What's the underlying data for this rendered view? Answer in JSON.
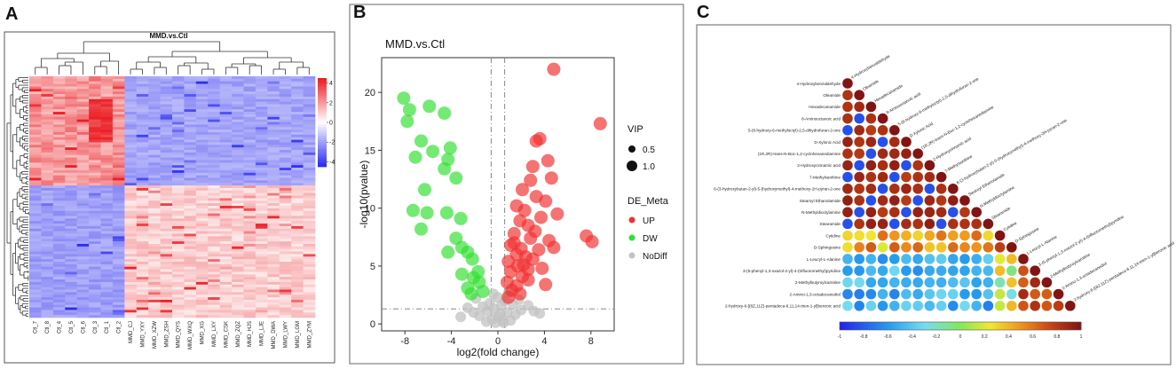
{
  "panels": {
    "a": {
      "letter": "A"
    },
    "b": {
      "letter": "B"
    },
    "c": {
      "letter": "C"
    }
  },
  "chart_data": [
    {
      "type": "heatmap",
      "title": "MMD.vs.Ctl",
      "columns": [
        "Ctl_7",
        "Ctl_8",
        "Ctl_4",
        "Ctl_5",
        "Ctl_6",
        "Ctl_3",
        "Ctl_1",
        "Ctl_2",
        "MMD_CJ",
        "MMD_YXY",
        "MMD_XZW",
        "MMD_ZSH",
        "MMD_QYS",
        "MMD_WXQ",
        "MMD_XG",
        "MMD_LXY",
        "MMD_CSK",
        "MMD_ZQZ",
        "MMD_HJS",
        "MMD_LJE",
        "MMD_DWA",
        "MMD_LWY",
        "MMD_LGM",
        "MMD_ZYM"
      ],
      "groups": [
        "Ctl",
        "MMD"
      ],
      "legend_ticks": [
        "4",
        "2",
        "0",
        "-2",
        "-4"
      ],
      "value_range": [
        -4.5,
        4.5
      ],
      "row_count": 95
    },
    {
      "type": "scatter",
      "title": "MMD.vs.Ctl",
      "xlabel": "log2(fold change)",
      "ylabel": "-log10(pvalue)",
      "xlim": [
        -10,
        10
      ],
      "ylim": [
        -0.6,
        23
      ],
      "x_ticks": [
        "-8",
        "-4",
        "0",
        "4",
        "8"
      ],
      "y_ticks": [
        "0",
        "5",
        "10",
        "15",
        "20"
      ],
      "threshold_lines": {
        "fc": [
          -0.58,
          0.58
        ],
        "p": 1.3
      },
      "legend_size_title": "VIP",
      "legend_sizes": [
        "0.5",
        "1.0"
      ],
      "legend_color_title": "DE_Meta",
      "categories": [
        {
          "name": "UP",
          "color": "#f23030"
        },
        {
          "name": "DW",
          "color": "#32e032"
        },
        {
          "name": "NoDiff",
          "color": "#c2c2c2"
        }
      ],
      "series": [
        {
          "name": "DW",
          "points": [
            [
              -8.1,
              19.5
            ],
            [
              -7.6,
              18.5
            ],
            [
              -7.8,
              17.5
            ],
            [
              -5.9,
              18.8
            ],
            [
              -4.6,
              18.2
            ],
            [
              -4.1,
              15.2
            ],
            [
              -4.3,
              14.2
            ],
            [
              -4.6,
              13.4
            ],
            [
              -3.6,
              12.6
            ],
            [
              -6.6,
              15.8
            ],
            [
              -7.1,
              14.4
            ],
            [
              -5.6,
              14.9
            ],
            [
              -6.3,
              11.6
            ],
            [
              -4.4,
              9.6
            ],
            [
              -3.2,
              9.1
            ],
            [
              -7.3,
              9.8
            ],
            [
              -6.1,
              9.6
            ],
            [
              -6.6,
              8.2
            ],
            [
              -4.3,
              6.2
            ],
            [
              -3.6,
              7.4
            ],
            [
              -3.1,
              6.6
            ],
            [
              -2.6,
              6.2
            ],
            [
              -2.2,
              5.6
            ],
            [
              -1.7,
              4.5
            ],
            [
              -3.1,
              4.3
            ],
            [
              -2.1,
              4.0
            ],
            [
              -1.6,
              3.6
            ],
            [
              -2.6,
              3.1
            ],
            [
              -1.3,
              2.8
            ],
            [
              -2.3,
              2.6
            ]
          ]
        },
        {
          "name": "UP",
          "points": [
            [
              4.8,
              22.0
            ],
            [
              8.8,
              17.3
            ],
            [
              3.6,
              16.0
            ],
            [
              3.3,
              15.8
            ],
            [
              3.0,
              13.6
            ],
            [
              4.3,
              14.1
            ],
            [
              4.6,
              12.6
            ],
            [
              2.8,
              12.4
            ],
            [
              2.1,
              11.6
            ],
            [
              3.3,
              11.0
            ],
            [
              4.1,
              10.6
            ],
            [
              1.6,
              10.2
            ],
            [
              2.3,
              9.8
            ],
            [
              3.7,
              9.2
            ],
            [
              5.1,
              9.5
            ],
            [
              1.9,
              8.9
            ],
            [
              2.6,
              8.5
            ],
            [
              3.2,
              8.0
            ],
            [
              1.4,
              7.8
            ],
            [
              2.8,
              7.4
            ],
            [
              4.4,
              7.2
            ],
            [
              7.6,
              7.6
            ],
            [
              8.1,
              7.1
            ],
            [
              1.1,
              6.8
            ],
            [
              2.0,
              6.5
            ],
            [
              3.5,
              6.4
            ],
            [
              4.8,
              6.6
            ],
            [
              1.6,
              6.0
            ],
            [
              2.4,
              5.8
            ],
            [
              3.0,
              5.6
            ],
            [
              0.9,
              5.4
            ],
            [
              1.7,
              5.0
            ],
            [
              2.6,
              4.7
            ],
            [
              3.8,
              4.8
            ],
            [
              1.1,
              4.5
            ],
            [
              2.1,
              4.1
            ],
            [
              0.8,
              3.6
            ],
            [
              1.6,
              3.3
            ],
            [
              2.6,
              3.8
            ],
            [
              1.2,
              2.9
            ],
            [
              0.9,
              2.3
            ],
            [
              1.9,
              2.6
            ],
            [
              4.1,
              3.4
            ],
            [
              1.4,
              7.0
            ],
            [
              2.2,
              5.1
            ]
          ]
        },
        {
          "name": "NoDiff",
          "points": [
            [
              -0.5,
              0.4
            ],
            [
              0.0,
              0.6
            ],
            [
              0.4,
              0.3
            ],
            [
              -0.9,
              1.1
            ],
            [
              0.8,
              1.0
            ],
            [
              1.5,
              0.8
            ],
            [
              -1.6,
              0.7
            ],
            [
              -0.3,
              1.3
            ],
            [
              0.3,
              1.6
            ],
            [
              -1.0,
              0.2
            ],
            [
              1.1,
              0.3
            ],
            [
              2.0,
              1.2
            ],
            [
              -2.1,
              1.0
            ],
            [
              0.6,
              2.0
            ],
            [
              -0.7,
              1.8
            ],
            [
              2.6,
              1.6
            ],
            [
              -2.6,
              1.4
            ],
            [
              0.2,
              0.9
            ],
            [
              -0.2,
              0.1
            ],
            [
              1.8,
              2.1
            ],
            [
              3.1,
              1.1
            ],
            [
              -3.2,
              0.6
            ],
            [
              0.5,
              0.1
            ],
            [
              -1.3,
              1.5
            ],
            [
              1.3,
              1.7
            ],
            [
              0.0,
              2.3
            ],
            [
              -0.4,
              2.6
            ],
            [
              0.9,
              2.7
            ],
            [
              3.6,
              0.9
            ],
            [
              -1.9,
              2.2
            ]
          ]
        }
      ]
    },
    {
      "type": "heatmap",
      "title": "",
      "variables": [
        "4-Hydroxybenzaldehyde",
        "Oleamide",
        "Hexadecanamide",
        "8-Aminooctanoic acid",
        "5-(6-hydroxy-6-methyloctyl)-2,5-dihydrofuran-2-one",
        "D-Xylonic Acid",
        "(1R,2R)-trans-N-Boc-1,2-cyclohexanediamine",
        "2-Hydroxycinnamic acid",
        "7-Methylxanthine",
        "6-(3-hydroxybutan-2-yl)-5-(hydroxymethyl)-4-methoxy-2H-pyran-2-one",
        "Stearoyl Ethanolamide",
        "N-Methyldioctylamine",
        "Stearamide",
        "Cytidine",
        "D-Sphingosine",
        "L-Leucyl-L-Alanine",
        "3-(5-phenyl-1,3-oxazol-2-yl)-4-(trifluoromethyl)pyridine",
        "2-Methylbutyroylcarnitine",
        "2-Amino-1,3-octadecanediol",
        "2-hydroxy-6-[(8Z,11Z)-pentadeca-8,11,14-trien-1-yl]benzoic acid"
      ],
      "colorbar_ticks": [
        "-1",
        "-0.8",
        "-0.6",
        "-0.4",
        "-0.2",
        "0",
        "0.2",
        "0.4",
        "0.6",
        "0.8",
        "1"
      ],
      "value_range": [
        -1,
        1
      ]
    }
  ]
}
